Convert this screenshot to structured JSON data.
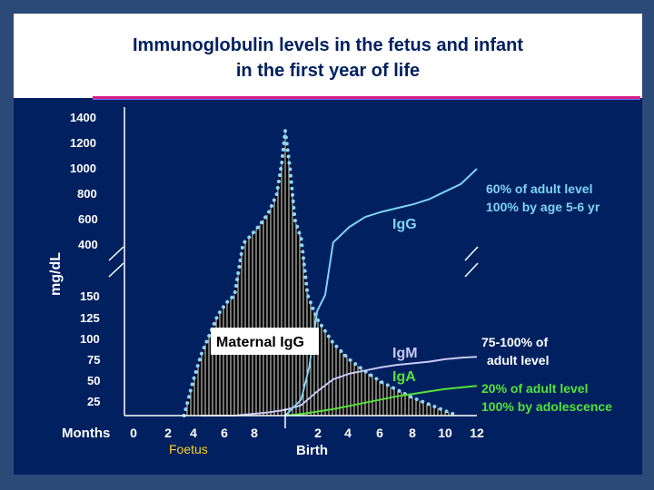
{
  "slide": {
    "title_line1": "Immunoglobulin levels in the fetus and infant",
    "title_line2": "in the first year of life"
  },
  "colors": {
    "background": "#002060",
    "frame": "#2b4a78",
    "igg": "#7fd3f7",
    "igm": "#c9c9f5",
    "iga": "#55e23a",
    "maternal_fill": "#000000",
    "maternal_dots": "#8fd6f5",
    "ann_igg": "#7fd3f7",
    "ann_igm": "#ffffff",
    "ann_iga": "#55e23a",
    "foetus": "#ffd21f",
    "title_rule": "#d61f8c"
  },
  "chart_data": {
    "type": "area",
    "ylabel": "mg/dL",
    "y_upper_ticks": [
      "1400",
      "1200",
      "1000",
      "800",
      "600",
      "400"
    ],
    "y_lower_ticks": [
      "150",
      "125",
      "100",
      "75",
      "50",
      "25"
    ],
    "x_label": "Months",
    "x_ticks": [
      "0",
      "2",
      "4",
      "6",
      "8",
      "2",
      "4",
      "6",
      "8",
      "10",
      "12"
    ],
    "x_group_labels": {
      "foetus": "Foetus",
      "birth": "Birth"
    },
    "axis_break": true,
    "note": "x in months from conception (0–9 = fetal life, 9 = birth, 9–21 = first year); y in mg/dL on a broken scale (0–150 lower segment, 400–1400 upper segment)",
    "series": [
      {
        "name": "Maternal IgG",
        "points": [
          [
            3,
            0
          ],
          [
            3.5,
            40
          ],
          [
            4,
            75
          ],
          [
            4.5,
            100
          ],
          [
            5,
            125
          ],
          [
            5.5,
            140
          ],
          [
            6,
            150
          ],
          [
            6.5,
            410
          ],
          [
            7,
            480
          ],
          [
            7.5,
            560
          ],
          [
            8,
            650
          ],
          [
            8.5,
            800
          ],
          [
            8.8,
            1050
          ],
          [
            9,
            1300
          ],
          [
            9.3,
            1000
          ],
          [
            9.6,
            600
          ],
          [
            10,
            450
          ],
          [
            10.4,
            150
          ],
          [
            11,
            120
          ],
          [
            12,
            90
          ],
          [
            13,
            70
          ],
          [
            14,
            55
          ],
          [
            15,
            42
          ],
          [
            16,
            32
          ],
          [
            17,
            22
          ],
          [
            18,
            14
          ],
          [
            19,
            6
          ],
          [
            19.8,
            0
          ]
        ]
      },
      {
        "name": "IgG",
        "points": [
          [
            9,
            0
          ],
          [
            10,
            20
          ],
          [
            10.5,
            60
          ],
          [
            11,
            130
          ],
          [
            11.5,
            150
          ],
          [
            12,
            420
          ],
          [
            13,
            540
          ],
          [
            14,
            620
          ],
          [
            15,
            660
          ],
          [
            16,
            690
          ],
          [
            17,
            720
          ],
          [
            18,
            760
          ],
          [
            19,
            820
          ],
          [
            20,
            880
          ],
          [
            21,
            1000
          ]
        ]
      },
      {
        "name": "IgM",
        "points": [
          [
            4,
            0
          ],
          [
            6,
            0
          ],
          [
            7,
            2
          ],
          [
            8,
            4
          ],
          [
            9,
            7
          ],
          [
            10,
            13
          ],
          [
            11,
            30
          ],
          [
            12,
            45
          ],
          [
            13,
            52
          ],
          [
            14,
            56
          ],
          [
            15,
            60
          ],
          [
            16,
            63
          ],
          [
            17,
            65
          ],
          [
            18,
            67
          ],
          [
            19,
            70
          ],
          [
            20,
            72
          ],
          [
            21,
            73
          ]
        ]
      },
      {
        "name": "IgA",
        "points": [
          [
            9,
            0
          ],
          [
            10,
            2
          ],
          [
            11,
            5
          ],
          [
            12,
            8
          ],
          [
            13,
            12
          ],
          [
            14,
            16
          ],
          [
            15,
            20
          ],
          [
            16,
            24
          ],
          [
            17,
            27
          ],
          [
            18,
            30
          ],
          [
            19,
            33
          ],
          [
            20,
            35
          ],
          [
            21,
            37
          ]
        ]
      }
    ],
    "annotations": {
      "maternal_igg": "Maternal IgG",
      "igg": "IgG",
      "igm": "IgM",
      "iga": "IgA",
      "igg_note_line1": "60% of adult level",
      "igg_note_line2": "100% by age 5-6 yr",
      "igm_note_line1": "75-100% of",
      "igm_note_line2": "adult level",
      "iga_note_line1": "20% of adult level",
      "iga_note_line2": "100% by adolescence"
    }
  }
}
